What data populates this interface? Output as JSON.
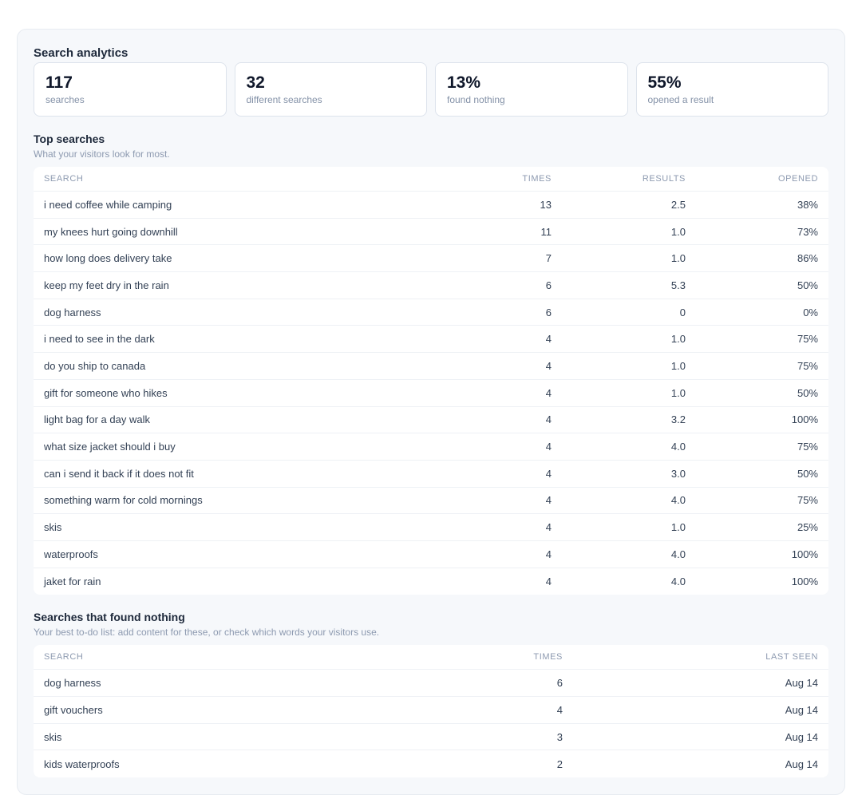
{
  "title": "Search analytics",
  "stats": [
    {
      "value": "117",
      "label": "searches"
    },
    {
      "value": "32",
      "label": "different searches"
    },
    {
      "value": "13%",
      "label": "found nothing"
    },
    {
      "value": "55%",
      "label": "opened a result"
    }
  ],
  "top": {
    "title": "Top searches",
    "subtitle": "What your visitors look for most.",
    "headers": {
      "search": "SEARCH",
      "times": "TIMES",
      "results": "RESULTS",
      "opened": "OPENED"
    },
    "rows": [
      {
        "search": "i need coffee while camping",
        "times": "13",
        "results": "2.5",
        "opened": "38%"
      },
      {
        "search": "my knees hurt going downhill",
        "times": "11",
        "results": "1.0",
        "opened": "73%"
      },
      {
        "search": "how long does delivery take",
        "times": "7",
        "results": "1.0",
        "opened": "86%"
      },
      {
        "search": "keep my feet dry in the rain",
        "times": "6",
        "results": "5.3",
        "opened": "50%"
      },
      {
        "search": "dog harness",
        "times": "6",
        "results": "0",
        "opened": "0%"
      },
      {
        "search": "i need to see in the dark",
        "times": "4",
        "results": "1.0",
        "opened": "75%"
      },
      {
        "search": "do you ship to canada",
        "times": "4",
        "results": "1.0",
        "opened": "75%"
      },
      {
        "search": "gift for someone who hikes",
        "times": "4",
        "results": "1.0",
        "opened": "50%"
      },
      {
        "search": "light bag for a day walk",
        "times": "4",
        "results": "3.2",
        "opened": "100%"
      },
      {
        "search": "what size jacket should i buy",
        "times": "4",
        "results": "4.0",
        "opened": "75%"
      },
      {
        "search": "can i send it back if it does not fit",
        "times": "4",
        "results": "3.0",
        "opened": "50%"
      },
      {
        "search": "something warm for cold mornings",
        "times": "4",
        "results": "4.0",
        "opened": "75%"
      },
      {
        "search": "skis",
        "times": "4",
        "results": "1.0",
        "opened": "25%"
      },
      {
        "search": "waterproofs",
        "times": "4",
        "results": "4.0",
        "opened": "100%"
      },
      {
        "search": "jaket for rain",
        "times": "4",
        "results": "4.0",
        "opened": "100%"
      }
    ]
  },
  "nothing": {
    "title": "Searches that found nothing",
    "subtitle": "Your best to-do list: add content for these, or check which words your visitors use.",
    "headers": {
      "search": "SEARCH",
      "times": "TIMES",
      "last": "LAST SEEN"
    },
    "rows": [
      {
        "search": "dog harness",
        "times": "6",
        "last": "Aug 14"
      },
      {
        "search": "gift vouchers",
        "times": "4",
        "last": "Aug 14"
      },
      {
        "search": "skis",
        "times": "3",
        "last": "Aug 14"
      },
      {
        "search": "kids waterproofs",
        "times": "2",
        "last": "Aug 14"
      }
    ]
  }
}
